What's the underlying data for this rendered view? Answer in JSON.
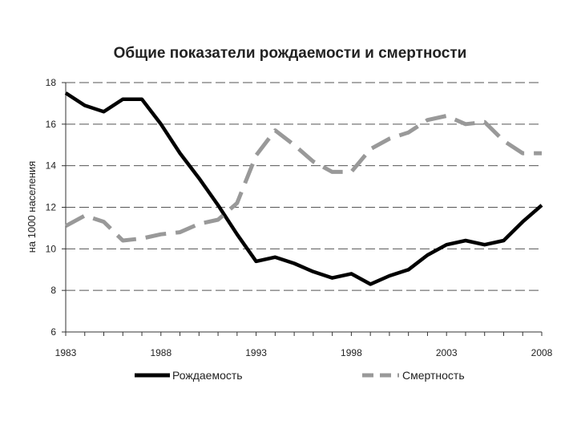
{
  "chart_data": {
    "type": "line",
    "title": "Общие показатели рождаемости и смертности",
    "ylabel": "на 1000 населения",
    "xlabel": "",
    "xlim": [
      1983,
      2008
    ],
    "ylim": [
      6,
      18
    ],
    "x_ticks": [
      "1983",
      "1988",
      "1993",
      "1998",
      "2003",
      "2008"
    ],
    "y_ticks": [
      "6",
      "8",
      "10",
      "12",
      "14",
      "16",
      "18"
    ],
    "grid": "horizontal dashed",
    "legend_position": "bottom",
    "x": [
      1983,
      1984,
      1985,
      1986,
      1987,
      1988,
      1989,
      1990,
      1991,
      1992,
      1993,
      1994,
      1995,
      1996,
      1997,
      1998,
      1999,
      2000,
      2001,
      2002,
      2003,
      2004,
      2005,
      2006,
      2007,
      2008
    ],
    "series": [
      {
        "name": "Рождаемость",
        "color": "#000000",
        "style": "solid",
        "values": [
          17.5,
          16.9,
          16.6,
          17.2,
          17.2,
          16.0,
          14.6,
          13.4,
          12.1,
          10.7,
          9.4,
          9.6,
          9.3,
          8.9,
          8.6,
          8.8,
          8.3,
          8.7,
          9.0,
          9.7,
          10.2,
          10.4,
          10.2,
          10.4,
          11.3,
          12.1
        ]
      },
      {
        "name": "Смертность",
        "color": "#999999",
        "style": "dashed",
        "values": [
          11.1,
          11.6,
          11.3,
          10.4,
          10.5,
          10.7,
          10.8,
          11.2,
          11.4,
          12.2,
          14.5,
          15.7,
          15.0,
          14.2,
          13.7,
          13.7,
          14.8,
          15.3,
          15.6,
          16.2,
          16.4,
          16.0,
          16.1,
          15.2,
          14.6,
          14.6
        ]
      }
    ]
  }
}
